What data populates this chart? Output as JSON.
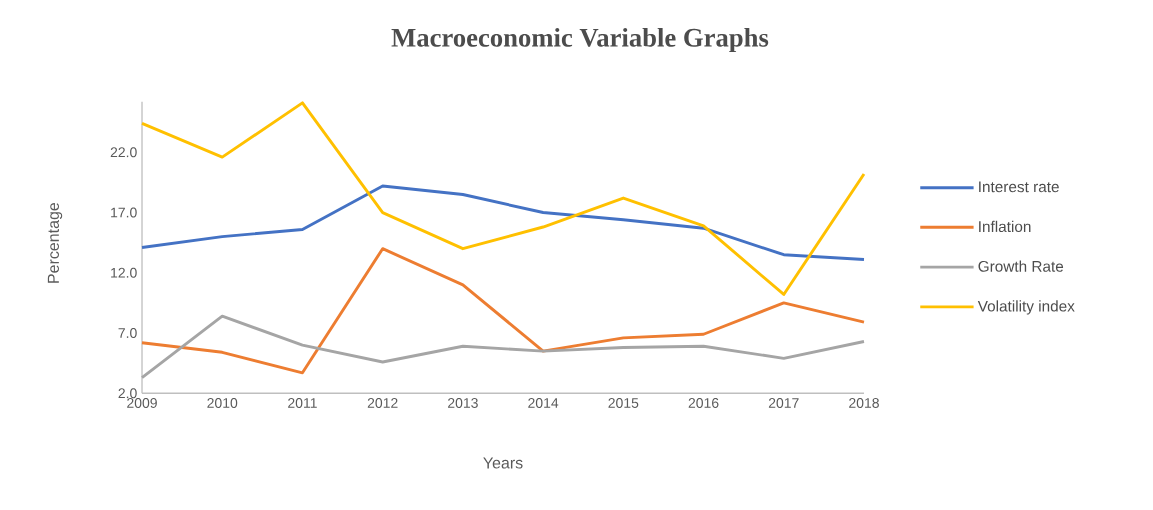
{
  "chart_data": {
    "type": "line",
    "title": "Macroeconomic Variable Graphs",
    "xlabel": "Years",
    "ylabel": "Percentage",
    "categories": [
      "2009",
      "2010",
      "2011",
      "2012",
      "2013",
      "2014",
      "2015",
      "2016",
      "2017",
      "2018"
    ],
    "series": [
      {
        "name": "Interest rate",
        "color": "#4472c4",
        "values": [
          14.1,
          15.0,
          15.6,
          19.2,
          18.5,
          17.0,
          16.4,
          15.7,
          13.5,
          13.1
        ]
      },
      {
        "name": "Inflation",
        "color": "#ed7d31",
        "values": [
          6.2,
          5.4,
          3.7,
          14.0,
          11.0,
          5.5,
          6.6,
          6.9,
          9.5,
          7.9
        ]
      },
      {
        "name": "Growth Rate",
        "color": "#a5a5a5",
        "values": [
          3.3,
          8.4,
          6.0,
          4.6,
          5.9,
          5.5,
          5.8,
          5.9,
          4.9,
          6.3
        ]
      },
      {
        "name": "Volatility index",
        "color": "#ffc000",
        "values": [
          24.4,
          21.6,
          26.1,
          17.0,
          14.0,
          15.8,
          18.2,
          15.9,
          10.2,
          20.2
        ]
      }
    ],
    "ylim": [
      2,
      26.2
    ],
    "yticks": [
      {
        "value": 2,
        "label": "2.0"
      },
      {
        "value": 7,
        "label": "7.0"
      },
      {
        "value": 12,
        "label": "12.0"
      },
      {
        "value": 17,
        "label": "17.0"
      },
      {
        "value": 22,
        "label": "22.0"
      }
    ],
    "legend": "right",
    "marker": "none",
    "line_style": "solid"
  }
}
